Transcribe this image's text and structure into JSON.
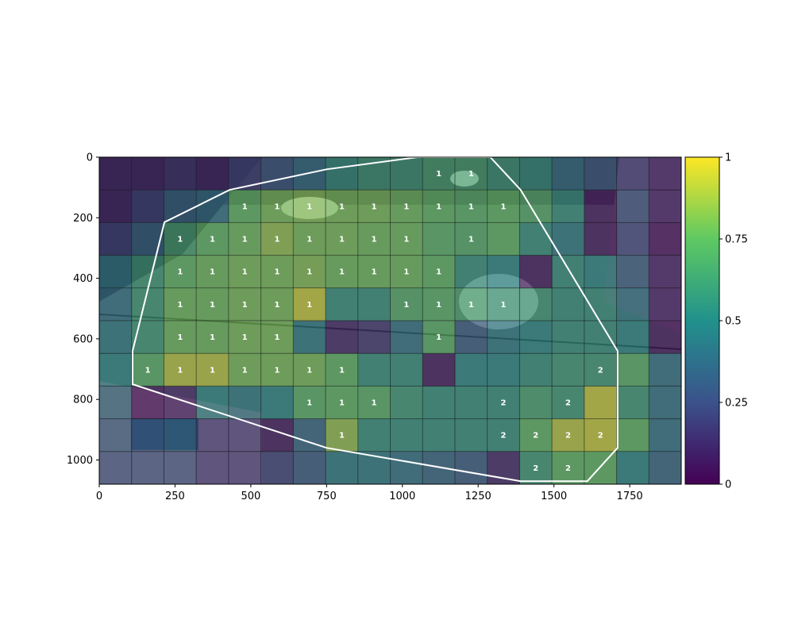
{
  "chart_data": {
    "type": "heatmap",
    "title": "",
    "xlabel": "",
    "ylabel": "",
    "image_size": [
      1920,
      1080
    ],
    "grid": {
      "cols": 18,
      "rows": 10,
      "cell_width": 106.67,
      "cell_height": 108
    },
    "xlim": [
      0,
      1920
    ],
    "ylim": [
      1080,
      0
    ],
    "x_ticks": [
      0,
      250,
      500,
      750,
      1000,
      1250,
      1500,
      1750
    ],
    "x_tick_labels": [
      "0",
      "250",
      "500",
      "750",
      "1000",
      "1250",
      "1500",
      "1750"
    ],
    "y_ticks": [
      0,
      200,
      400,
      600,
      800,
      1000
    ],
    "y_tick_labels": [
      "0",
      "200",
      "400",
      "600",
      "800",
      "1000"
    ],
    "colorbar": {
      "colormap": "viridis",
      "range": [
        0,
        1
      ],
      "ticks": [
        0,
        0.25,
        0.5,
        0.75,
        1
      ],
      "tick_labels": [
        "0",
        "0.25",
        "0.5",
        "0.75",
        "1"
      ]
    },
    "colormap_stops": [
      "#440154",
      "#3b528b",
      "#21918c",
      "#5ec962",
      "#fde725"
    ],
    "cell_values": [
      [
        0.1,
        0.1,
        0.15,
        0.1,
        0.2,
        0.3,
        0.4,
        0.55,
        0.6,
        0.6,
        0.65,
        0.65,
        0.6,
        0.55,
        0.4,
        0.3,
        0.2,
        0.1
      ],
      [
        0.1,
        0.2,
        0.35,
        0.4,
        0.75,
        0.8,
        0.82,
        0.8,
        0.8,
        0.78,
        0.75,
        0.72,
        0.75,
        0.7,
        0.55,
        0.05,
        0.3,
        0.1
      ],
      [
        0.2,
        0.35,
        0.65,
        0.75,
        0.78,
        0.85,
        0.8,
        0.8,
        0.78,
        0.78,
        0.72,
        0.7,
        0.75,
        0.55,
        0.45,
        0.05,
        0.25,
        0.05
      ],
      [
        0.45,
        0.6,
        0.75,
        0.78,
        0.8,
        0.8,
        0.82,
        0.78,
        0.78,
        0.78,
        0.75,
        0.55,
        0.5,
        0.05,
        0.55,
        0.5,
        0.35,
        0.1
      ],
      [
        0.4,
        0.6,
        0.78,
        0.78,
        0.8,
        0.8,
        0.95,
        0.55,
        0.55,
        0.7,
        0.72,
        0.65,
        0.6,
        0.6,
        0.55,
        0.55,
        0.45,
        0.1
      ],
      [
        0.45,
        0.6,
        0.78,
        0.78,
        0.8,
        0.8,
        0.45,
        0.1,
        0.15,
        0.4,
        0.72,
        0.3,
        0.45,
        0.5,
        0.55,
        0.55,
        0.5,
        0.05
      ],
      [
        0.5,
        0.72,
        0.92,
        0.92,
        0.8,
        0.8,
        0.8,
        0.75,
        0.55,
        0.55,
        0.05,
        0.5,
        0.5,
        0.55,
        0.6,
        0.6,
        0.72,
        0.4
      ],
      [
        0.4,
        0.05,
        0.1,
        0.5,
        0.45,
        0.5,
        0.72,
        0.75,
        0.72,
        0.6,
        0.55,
        0.55,
        0.55,
        0.65,
        0.6,
        0.95,
        0.6,
        0.4
      ],
      [
        0.35,
        0.3,
        0.35,
        0.2,
        0.2,
        0.05,
        0.35,
        0.85,
        0.55,
        0.55,
        0.55,
        0.55,
        0.55,
        0.75,
        0.92,
        0.95,
        0.75,
        0.4
      ],
      [
        0.3,
        0.3,
        0.3,
        0.2,
        0.2,
        0.2,
        0.3,
        0.45,
        0.45,
        0.4,
        0.35,
        0.3,
        0.1,
        0.6,
        0.75,
        0.75,
        0.5,
        0.35
      ]
    ],
    "cell_labels": [
      {
        "col": 10,
        "row": 0,
        "label": "1"
      },
      {
        "col": 11,
        "row": 0,
        "label": "1"
      },
      {
        "col": 4,
        "row": 1,
        "label": "1"
      },
      {
        "col": 5,
        "row": 1,
        "label": "1"
      },
      {
        "col": 6,
        "row": 1,
        "label": "1"
      },
      {
        "col": 7,
        "row": 1,
        "label": "1"
      },
      {
        "col": 8,
        "row": 1,
        "label": "1"
      },
      {
        "col": 9,
        "row": 1,
        "label": "1"
      },
      {
        "col": 10,
        "row": 1,
        "label": "1"
      },
      {
        "col": 11,
        "row": 1,
        "label": "1"
      },
      {
        "col": 12,
        "row": 1,
        "label": "1"
      },
      {
        "col": 2,
        "row": 2,
        "label": "1"
      },
      {
        "col": 3,
        "row": 2,
        "label": "1"
      },
      {
        "col": 4,
        "row": 2,
        "label": "1"
      },
      {
        "col": 5,
        "row": 2,
        "label": "1"
      },
      {
        "col": 6,
        "row": 2,
        "label": "1"
      },
      {
        "col": 7,
        "row": 2,
        "label": "1"
      },
      {
        "col": 8,
        "row": 2,
        "label": "1"
      },
      {
        "col": 9,
        "row": 2,
        "label": "1"
      },
      {
        "col": 11,
        "row": 2,
        "label": "1"
      },
      {
        "col": 2,
        "row": 3,
        "label": "1"
      },
      {
        "col": 3,
        "row": 3,
        "label": "1"
      },
      {
        "col": 4,
        "row": 3,
        "label": "1"
      },
      {
        "col": 5,
        "row": 3,
        "label": "1"
      },
      {
        "col": 6,
        "row": 3,
        "label": "1"
      },
      {
        "col": 7,
        "row": 3,
        "label": "1"
      },
      {
        "col": 8,
        "row": 3,
        "label": "1"
      },
      {
        "col": 9,
        "row": 3,
        "label": "1"
      },
      {
        "col": 10,
        "row": 3,
        "label": "1"
      },
      {
        "col": 2,
        "row": 4,
        "label": "1"
      },
      {
        "col": 3,
        "row": 4,
        "label": "1"
      },
      {
        "col": 4,
        "row": 4,
        "label": "1"
      },
      {
        "col": 5,
        "row": 4,
        "label": "1"
      },
      {
        "col": 6,
        "row": 4,
        "label": "1"
      },
      {
        "col": 9,
        "row": 4,
        "label": "1"
      },
      {
        "col": 10,
        "row": 4,
        "label": "1"
      },
      {
        "col": 11,
        "row": 4,
        "label": "1"
      },
      {
        "col": 12,
        "row": 4,
        "label": "1"
      },
      {
        "col": 2,
        "row": 5,
        "label": "1"
      },
      {
        "col": 3,
        "row": 5,
        "label": "1"
      },
      {
        "col": 4,
        "row": 5,
        "label": "1"
      },
      {
        "col": 5,
        "row": 5,
        "label": "1"
      },
      {
        "col": 10,
        "row": 5,
        "label": "1"
      },
      {
        "col": 1,
        "row": 6,
        "label": "1"
      },
      {
        "col": 2,
        "row": 6,
        "label": "1"
      },
      {
        "col": 3,
        "row": 6,
        "label": "1"
      },
      {
        "col": 4,
        "row": 6,
        "label": "1"
      },
      {
        "col": 5,
        "row": 6,
        "label": "1"
      },
      {
        "col": 6,
        "row": 6,
        "label": "1"
      },
      {
        "col": 7,
        "row": 6,
        "label": "1"
      },
      {
        "col": 15,
        "row": 6,
        "label": "2"
      },
      {
        "col": 6,
        "row": 7,
        "label": "1"
      },
      {
        "col": 7,
        "row": 7,
        "label": "1"
      },
      {
        "col": 8,
        "row": 7,
        "label": "1"
      },
      {
        "col": 12,
        "row": 7,
        "label": "2"
      },
      {
        "col": 14,
        "row": 7,
        "label": "2"
      },
      {
        "col": 7,
        "row": 8,
        "label": "1"
      },
      {
        "col": 12,
        "row": 8,
        "label": "2"
      },
      {
        "col": 13,
        "row": 8,
        "label": "2"
      },
      {
        "col": 14,
        "row": 8,
        "label": "2"
      },
      {
        "col": 15,
        "row": 8,
        "label": "2"
      },
      {
        "col": 13,
        "row": 9,
        "label": "2"
      },
      {
        "col": 14,
        "row": 9,
        "label": "2"
      }
    ],
    "polygon": [
      [
        1050,
        0
      ],
      [
        1290,
        0
      ],
      [
        1390,
        108
      ],
      [
        1710,
        640
      ],
      [
        1710,
        960
      ],
      [
        1610,
        1070
      ],
      [
        1390,
        1070
      ],
      [
        750,
        960
      ],
      [
        110,
        750
      ],
      [
        110,
        640
      ],
      [
        215,
        215
      ],
      [
        430,
        108
      ],
      [
        750,
        40
      ]
    ]
  }
}
